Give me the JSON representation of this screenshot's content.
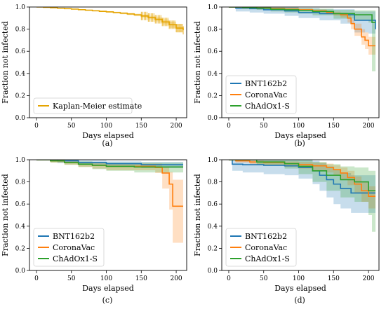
{
  "figure": {
    "colors": {
      "blue": "#1f77b4",
      "orange": "#ff7f0e",
      "green": "#2ca02c",
      "km": "#e5a400"
    }
  },
  "chart_data": [
    {
      "type": "line",
      "panel_label": "(a)",
      "xlabel": "Days elapsed",
      "ylabel": "Fraction not infected",
      "xlim": [
        -10,
        215
      ],
      "ylim": [
        0.0,
        1.0
      ],
      "xticks": [
        0,
        50,
        100,
        150,
        200
      ],
      "yticks": [
        0.0,
        0.2,
        0.4,
        0.6,
        0.8,
        1.0
      ],
      "legend_position": "lower-left",
      "series": [
        {
          "name": "Kaplan-Meier estimate",
          "color": "#e5a400",
          "x": [
            0,
            10,
            20,
            30,
            40,
            50,
            60,
            70,
            80,
            90,
            100,
            110,
            120,
            130,
            140,
            150,
            160,
            170,
            180,
            190,
            200,
            210
          ],
          "y": [
            1.0,
            0.997,
            0.993,
            0.989,
            0.985,
            0.981,
            0.976,
            0.971,
            0.966,
            0.961,
            0.956,
            0.95,
            0.944,
            0.937,
            0.929,
            0.919,
            0.905,
            0.889,
            0.865,
            0.84,
            0.81,
            0.79
          ],
          "ci_lower": [
            1.0,
            0.995,
            0.99,
            0.986,
            0.981,
            0.977,
            0.972,
            0.966,
            0.96,
            0.955,
            0.949,
            0.942,
            0.935,
            0.927,
            0.917,
            0.905,
            0.889,
            0.87,
            0.842,
            0.812,
            0.77,
            0.73
          ],
          "ci_upper": [
            1.0,
            0.999,
            0.996,
            0.992,
            0.989,
            0.985,
            0.98,
            0.976,
            0.972,
            0.967,
            0.962,
            0.957,
            0.952,
            0.946,
            0.94,
            0.932,
            0.92,
            0.907,
            0.887,
            0.867,
            0.848,
            0.83
          ]
        }
      ]
    },
    {
      "type": "line",
      "panel_label": "(b)",
      "xlabel": "Days elapsed",
      "ylabel": "Fraction not infected",
      "xlim": [
        -10,
        215
      ],
      "ylim": [
        0.0,
        1.0
      ],
      "xticks": [
        0,
        50,
        100,
        150,
        200
      ],
      "yticks": [
        0.0,
        0.2,
        0.4,
        0.6,
        0.8,
        1.0
      ],
      "legend_position": "lower-left",
      "series": [
        {
          "name": "BNT162b2",
          "color": "#1f77b4",
          "x": [
            0,
            10,
            30,
            50,
            80,
            100,
            130,
            160,
            180,
            200,
            210
          ],
          "y": [
            1.0,
            0.99,
            0.985,
            0.975,
            0.965,
            0.95,
            0.94,
            0.93,
            0.88,
            0.88,
            0.8
          ],
          "ci_lower": [
            1.0,
            0.96,
            0.95,
            0.94,
            0.92,
            0.9,
            0.88,
            0.85,
            0.77,
            0.76,
            0.66
          ],
          "ci_upper": [
            1.0,
            1.0,
            1.0,
            1.0,
            1.0,
            0.99,
            0.98,
            0.98,
            0.96,
            0.96,
            0.93
          ]
        },
        {
          "name": "CoronaVac",
          "color": "#ff7f0e",
          "x": [
            0,
            20,
            40,
            60,
            80,
            100,
            120,
            140,
            150,
            160,
            170,
            175,
            180,
            190,
            195,
            200,
            210
          ],
          "y": [
            1.0,
            0.995,
            0.99,
            0.985,
            0.98,
            0.975,
            0.965,
            0.95,
            0.94,
            0.93,
            0.9,
            0.85,
            0.8,
            0.73,
            0.7,
            0.65,
            0.65
          ],
          "ci_lower": [
            1.0,
            0.99,
            0.98,
            0.975,
            0.97,
            0.965,
            0.952,
            0.935,
            0.922,
            0.905,
            0.86,
            0.8,
            0.74,
            0.66,
            0.62,
            0.57,
            0.57
          ],
          "ci_upper": [
            1.0,
            1.0,
            1.0,
            0.995,
            0.99,
            0.985,
            0.978,
            0.965,
            0.958,
            0.95,
            0.93,
            0.89,
            0.85,
            0.8,
            0.77,
            0.73,
            0.73
          ]
        },
        {
          "name": "ChAdOx1-S",
          "color": "#2ca02c",
          "x": [
            0,
            20,
            40,
            60,
            80,
            100,
            120,
            150,
            180,
            200,
            205,
            210
          ],
          "y": [
            1.0,
            0.995,
            0.99,
            0.98,
            0.975,
            0.97,
            0.96,
            0.94,
            0.93,
            0.93,
            0.86,
            0.86
          ],
          "ci_lower": [
            1.0,
            0.985,
            0.975,
            0.96,
            0.95,
            0.94,
            0.925,
            0.895,
            0.88,
            0.86,
            0.42,
            0.42
          ],
          "ci_upper": [
            1.0,
            1.0,
            1.0,
            0.995,
            0.995,
            0.99,
            0.985,
            0.975,
            0.97,
            0.97,
            0.97,
            0.97
          ]
        }
      ]
    },
    {
      "type": "line",
      "panel_label": "(c)",
      "xlabel": "Days elapsed",
      "ylabel": "Fraction not infected",
      "xlim": [
        -10,
        215
      ],
      "ylim": [
        0.0,
        1.0
      ],
      "xticks": [
        0,
        50,
        100,
        150,
        200
      ],
      "yticks": [
        0.0,
        0.2,
        0.4,
        0.6,
        0.8,
        1.0
      ],
      "legend_position": "lower-left",
      "series": [
        {
          "name": "BNT162b2",
          "color": "#1f77b4",
          "x": [
            0,
            30,
            60,
            100,
            150,
            210
          ],
          "y": [
            1.0,
            0.99,
            0.975,
            0.965,
            0.955,
            0.955
          ],
          "ci_lower": [
            1.0,
            0.97,
            0.955,
            0.94,
            0.925,
            0.925
          ],
          "ci_upper": [
            1.0,
            1.0,
            0.995,
            0.985,
            0.98,
            0.98
          ]
        },
        {
          "name": "CoronaVac",
          "color": "#ff7f0e",
          "x": [
            0,
            20,
            40,
            60,
            80,
            100,
            170,
            180,
            190,
            195,
            210
          ],
          "y": [
            1.0,
            0.99,
            0.975,
            0.96,
            0.95,
            0.94,
            0.93,
            0.88,
            0.78,
            0.58,
            0.58
          ],
          "ci_lower": [
            1.0,
            0.975,
            0.955,
            0.935,
            0.92,
            0.905,
            0.88,
            0.74,
            0.55,
            0.25,
            0.25
          ],
          "ci_upper": [
            1.0,
            1.0,
            0.99,
            0.98,
            0.975,
            0.965,
            0.965,
            0.93,
            0.89,
            0.82,
            0.82
          ]
        },
        {
          "name": "ChAdOx1-S",
          "color": "#2ca02c",
          "x": [
            0,
            20,
            40,
            60,
            80,
            100,
            140,
            210
          ],
          "y": [
            1.0,
            0.99,
            0.975,
            0.96,
            0.95,
            0.94,
            0.935,
            0.935
          ],
          "ci_lower": [
            1.0,
            0.975,
            0.955,
            0.935,
            0.915,
            0.9,
            0.885,
            0.885
          ],
          "ci_upper": [
            1.0,
            1.0,
            0.995,
            0.985,
            0.98,
            0.975,
            0.975,
            0.975
          ]
        }
      ]
    },
    {
      "type": "line",
      "panel_label": "(d)",
      "xlabel": "Days elapsed",
      "ylabel": "Fraction not infected",
      "xlim": [
        -10,
        215
      ],
      "ylim": [
        0.0,
        1.0
      ],
      "xticks": [
        0,
        50,
        100,
        150,
        200
      ],
      "yticks": [
        0.0,
        0.2,
        0.4,
        0.6,
        0.8,
        1.0
      ],
      "legend_position": "lower-left",
      "series": [
        {
          "name": "BNT162b2",
          "color": "#1f77b4",
          "x": [
            0,
            5,
            20,
            50,
            80,
            100,
            120,
            130,
            140,
            150,
            160,
            175,
            200,
            210
          ],
          "y": [
            1.0,
            0.96,
            0.955,
            0.95,
            0.945,
            0.93,
            0.9,
            0.86,
            0.82,
            0.78,
            0.74,
            0.7,
            0.7,
            0.7
          ],
          "ci_lower": [
            1.0,
            0.9,
            0.885,
            0.87,
            0.86,
            0.83,
            0.78,
            0.72,
            0.66,
            0.6,
            0.56,
            0.52,
            0.52,
            0.52
          ],
          "ci_upper": [
            1.0,
            1.0,
            1.0,
            1.0,
            1.0,
            1.0,
            0.99,
            0.97,
            0.94,
            0.91,
            0.88,
            0.86,
            0.86,
            0.86
          ]
        },
        {
          "name": "CoronaVac",
          "color": "#ff7f0e",
          "x": [
            0,
            10,
            30,
            50,
            80,
            100,
            120,
            140,
            150,
            160,
            170,
            180,
            190,
            200,
            210
          ],
          "y": [
            1.0,
            0.99,
            0.98,
            0.975,
            0.965,
            0.955,
            0.945,
            0.93,
            0.91,
            0.88,
            0.84,
            0.78,
            0.72,
            0.67,
            0.67
          ],
          "ci_lower": [
            1.0,
            0.975,
            0.96,
            0.95,
            0.935,
            0.92,
            0.905,
            0.885,
            0.86,
            0.82,
            0.77,
            0.7,
            0.62,
            0.56,
            0.56
          ],
          "ci_upper": [
            1.0,
            1.0,
            0.995,
            0.99,
            0.985,
            0.98,
            0.975,
            0.965,
            0.95,
            0.93,
            0.9,
            0.85,
            0.8,
            0.76,
            0.76
          ]
        },
        {
          "name": "ChAdOx1-S",
          "color": "#2ca02c",
          "x": [
            0,
            40,
            80,
            100,
            120,
            140,
            160,
            180,
            200,
            205,
            210
          ],
          "y": [
            1.0,
            0.98,
            0.965,
            0.94,
            0.9,
            0.86,
            0.82,
            0.8,
            0.72,
            0.72,
            0.72
          ],
          "ci_lower": [
            1.0,
            0.95,
            0.92,
            0.87,
            0.8,
            0.72,
            0.66,
            0.62,
            0.5,
            0.35,
            0.35
          ],
          "ci_upper": [
            1.0,
            1.0,
            1.0,
            1.0,
            0.98,
            0.96,
            0.94,
            0.93,
            0.9,
            0.9,
            0.9
          ]
        }
      ]
    }
  ]
}
